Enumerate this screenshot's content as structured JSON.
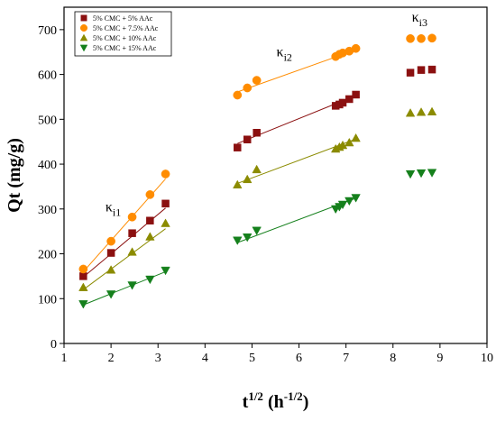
{
  "chart_data": {
    "type": "scatter",
    "xlabel": {
      "base": "t",
      "sup": "1/2",
      "unit_open": " (h",
      "unit_sup": "-1/2",
      "unit_close": ")"
    },
    "ylabel": "Qt (mg/g)",
    "xlim": [
      1,
      10
    ],
    "ylim": [
      0,
      750
    ],
    "x_ticks": [
      1,
      2,
      3,
      4,
      5,
      6,
      7,
      8,
      9,
      10
    ],
    "y_ticks": [
      0,
      100,
      200,
      300,
      400,
      500,
      600,
      700
    ],
    "grid": false,
    "legend_position": "top-left",
    "annotations": [
      {
        "kappa": "κ",
        "sub": "i1",
        "x": 1.88,
        "y": 295
      },
      {
        "kappa": "κ",
        "sub": "i2",
        "x": 5.52,
        "y": 640
      },
      {
        "kappa": "κ",
        "sub": "i3",
        "x": 8.4,
        "y": 718
      }
    ],
    "series": [
      {
        "name": "5% CMC + 5% AAc",
        "marker": "square",
        "color": "#8b1010",
        "x": [
          1.41,
          2.0,
          2.45,
          2.83,
          3.16,
          4.69,
          4.9,
          5.1,
          6.78,
          6.86,
          6.93,
          7.07,
          7.21,
          8.37,
          8.6,
          8.83
        ],
        "y": [
          150,
          202,
          246,
          274,
          312,
          437,
          455,
          470,
          530,
          533,
          537,
          545,
          555,
          604,
          610,
          611
        ],
        "fits": [
          {
            "x": [
              1.41,
              3.16
            ],
            "y": [
              148,
              302
            ]
          },
          {
            "x": [
              4.69,
              7.21
            ],
            "y": [
              446,
              553
            ]
          }
        ]
      },
      {
        "name": "5% CMC + 7.5% AAc",
        "marker": "circle",
        "color": "#ff8c00",
        "x": [
          1.41,
          2.0,
          2.45,
          2.83,
          3.16,
          4.69,
          4.9,
          5.1,
          6.78,
          6.86,
          6.93,
          7.07,
          7.21,
          8.37,
          8.6,
          8.83
        ],
        "y": [
          166,
          228,
          282,
          332,
          378,
          554,
          570,
          587,
          640,
          645,
          648,
          652,
          658,
          680,
          680,
          681
        ],
        "fits": [
          {
            "x": [
              1.41,
              3.16
            ],
            "y": [
              160,
              367
            ]
          },
          {
            "x": [
              4.69,
              7.21
            ],
            "y": [
              561,
              655
            ]
          }
        ]
      },
      {
        "name": "5% CMC + 10% AAc",
        "marker": "triangle-up",
        "color": "#8b8b00",
        "x": [
          1.41,
          2.0,
          2.45,
          2.83,
          3.16,
          4.69,
          4.9,
          5.1,
          6.78,
          6.86,
          6.93,
          7.07,
          7.21,
          8.37,
          8.6,
          8.83
        ],
        "y": [
          125,
          164,
          204,
          238,
          268,
          354,
          366,
          388,
          434,
          438,
          442,
          448,
          458,
          514,
          516,
          517
        ],
        "fits": [
          {
            "x": [
              1.41,
              3.16
            ],
            "y": [
              120,
              256
            ]
          },
          {
            "x": [
              4.69,
              7.21
            ],
            "y": [
              357,
              456
            ]
          }
        ]
      },
      {
        "name": "5% CMC + 15% AAc",
        "marker": "triangle-down",
        "color": "#15801c",
        "x": [
          1.41,
          2.0,
          2.45,
          2.83,
          3.16,
          4.69,
          4.9,
          5.1,
          6.78,
          6.86,
          6.93,
          7.07,
          7.21,
          8.37,
          8.6,
          8.83
        ],
        "y": [
          88,
          110,
          130,
          143,
          163,
          230,
          237,
          252,
          300,
          305,
          310,
          318,
          325,
          378,
          380,
          381
        ],
        "fits": [
          {
            "x": [
              1.41,
              3.16
            ],
            "y": [
              86,
              160
            ]
          },
          {
            "x": [
              4.69,
              7.21
            ],
            "y": [
              225,
              324
            ]
          }
        ]
      }
    ]
  }
}
